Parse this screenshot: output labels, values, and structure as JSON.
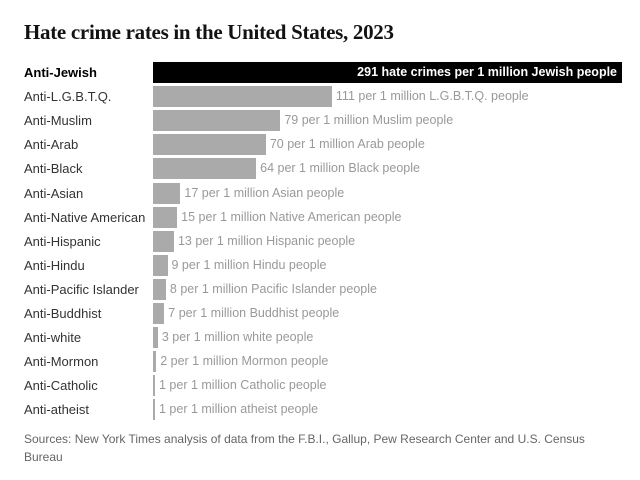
{
  "chart_data": {
    "type": "bar",
    "orientation": "horizontal",
    "title": "Hate crime rates in the United States, 2023",
    "categories": [
      "Anti-Jewish",
      "Anti-L.G.B.T.Q.",
      "Anti-Muslim",
      "Anti-Arab",
      "Anti-Black",
      "Anti-Asian",
      "Anti-Native American",
      "Anti-Hispanic",
      "Anti-Hindu",
      "Anti-Pacific Islander",
      "Anti-Buddhist",
      "Anti-white",
      "Anti-Mormon",
      "Anti-Catholic",
      "Anti-atheist"
    ],
    "values": [
      291,
      111,
      79,
      70,
      64,
      17,
      15,
      13,
      9,
      8,
      7,
      3,
      2,
      1,
      1
    ],
    "value_labels": [
      "291 hate crimes per 1 million Jewish people",
      "111 per 1 million L.G.B.T.Q. people",
      "79 per 1 million Muslim people",
      "70 per 1 million Arab people",
      "64 per 1 million Black people",
      "17 per 1 million Asian people",
      "15 per 1 million Native American people",
      "13 per 1 million Hispanic people",
      "9 per 1 million Hindu people",
      "8 per 1 million Pacific Islander people",
      "7 per 1 million Buddhist people",
      "3 per 1 million white people",
      "2 per 1 million Mormon people",
      "1 per 1 million Catholic people",
      "1 per 1 million atheist people"
    ],
    "highlight_index": 0,
    "colors": {
      "highlight": "#000000",
      "default": "#aaaaaa"
    },
    "xlim": [
      0,
      291
    ],
    "grid": false,
    "source": "Sources: New York Times analysis of data from the F.B.I., Gallup, Pew Research Center and U.S. Census Bureau"
  }
}
